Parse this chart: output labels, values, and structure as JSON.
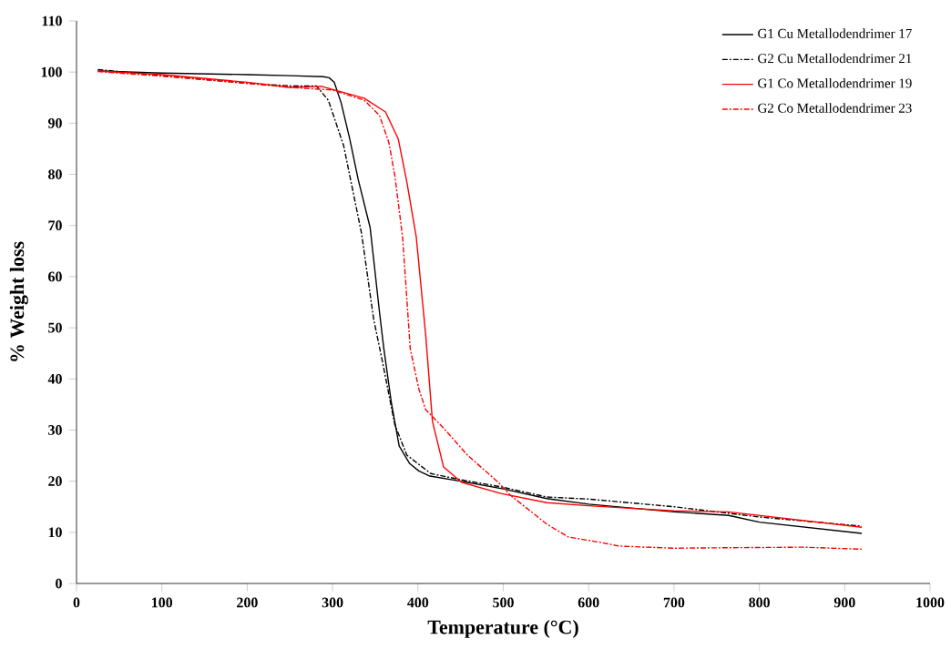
{
  "chart_data": {
    "type": "line",
    "xlabel": "Temperature (°C)",
    "ylabel": "% Weight loss",
    "xlim": [
      0,
      1000
    ],
    "xticks": [
      0,
      100,
      200,
      300,
      400,
      500,
      600,
      700,
      800,
      900,
      1000
    ],
    "ylim": [
      0,
      110
    ],
    "yticks": [
      0,
      10,
      20,
      30,
      40,
      50,
      60,
      70,
      80,
      90,
      100,
      110
    ],
    "legend": "top right",
    "marker": "none",
    "series": [
      {
        "name": "G1 Cu Metallodendrimer 17",
        "color": "#000000",
        "line_style": "solid",
        "x": [
          25,
          100,
          200,
          250,
          289,
          296,
          302,
          310,
          320,
          330,
          344,
          355,
          360,
          369,
          378,
          390,
          401,
          414,
          450,
          500,
          551,
          600,
          700,
          764,
          800,
          920
        ],
        "values": [
          100.2,
          99.8,
          99.5,
          99.3,
          99.1,
          98.9,
          98,
          94,
          87,
          79,
          69.6,
          53,
          46,
          35.2,
          26.9,
          23.5,
          22,
          21,
          20,
          18.5,
          16.6,
          15.5,
          14,
          13.3,
          12,
          9.8
        ]
      },
      {
        "name": "G2 Cu Metallodendrimer 21",
        "color": "#000000",
        "line_style": "dashed",
        "x": [
          25,
          100,
          200,
          250,
          281,
          295,
          313,
          334,
          348,
          359,
          373,
          387,
          415,
          450,
          500,
          551,
          600,
          700,
          800,
          920
        ],
        "values": [
          100.5,
          99.3,
          97.8,
          97.3,
          97.3,
          94.5,
          85.6,
          68.4,
          51.8,
          42.9,
          31,
          25.1,
          21.5,
          20.3,
          18.8,
          16.9,
          16.5,
          15,
          13,
          11.2
        ]
      },
      {
        "name": "G1 Co Metallodendrimer 19",
        "color": "#ff0000",
        "line_style": "solid",
        "x": [
          25,
          100,
          200,
          250,
          287,
          337,
          362,
          377,
          387,
          398,
          409,
          417,
          430,
          451,
          497,
          551,
          600,
          700,
          764,
          920
        ],
        "values": [
          100.2,
          99.5,
          98,
          97,
          97.2,
          94.9,
          92.2,
          86.9,
          78.5,
          67.8,
          48.8,
          31.7,
          22.8,
          19.8,
          17.6,
          15.8,
          15.2,
          14.2,
          14,
          11
        ]
      },
      {
        "name": "G2 Co Metallodendrimer 23",
        "color": "#ff0000",
        "line_style": "dashed",
        "x": [
          25,
          100,
          200,
          250,
          300,
          337,
          348,
          355,
          366,
          373,
          382,
          391,
          401,
          409,
          430,
          458,
          494,
          508,
          551,
          576,
          615,
          636,
          700,
          850,
          920
        ],
        "values": [
          100.1,
          99.2,
          97.8,
          97,
          96.5,
          94.5,
          92.7,
          91.5,
          86.2,
          79.7,
          67.8,
          45.9,
          38.1,
          34,
          30.4,
          25.1,
          19.8,
          17.3,
          11.6,
          9.1,
          8,
          7.3,
          6.9,
          7.1,
          6.7
        ]
      }
    ]
  }
}
